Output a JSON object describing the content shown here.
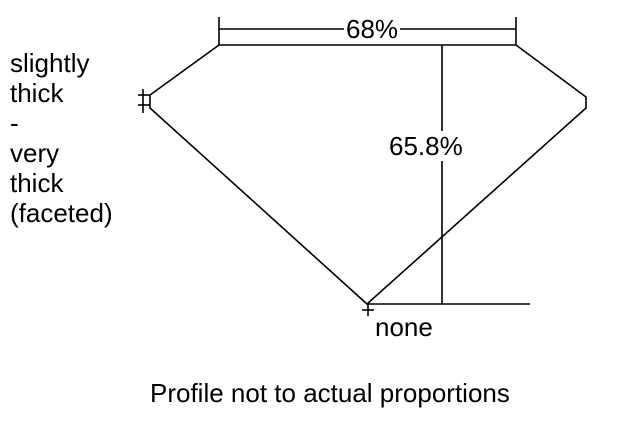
{
  "girdle_label": [
    "slightly",
    "thick",
    "-",
    "very",
    "thick",
    "(faceted)"
  ],
  "table_label": "68%",
  "depth_label": "65.8%",
  "culet_label": "none",
  "caption": "Profile not to actual proportions"
}
